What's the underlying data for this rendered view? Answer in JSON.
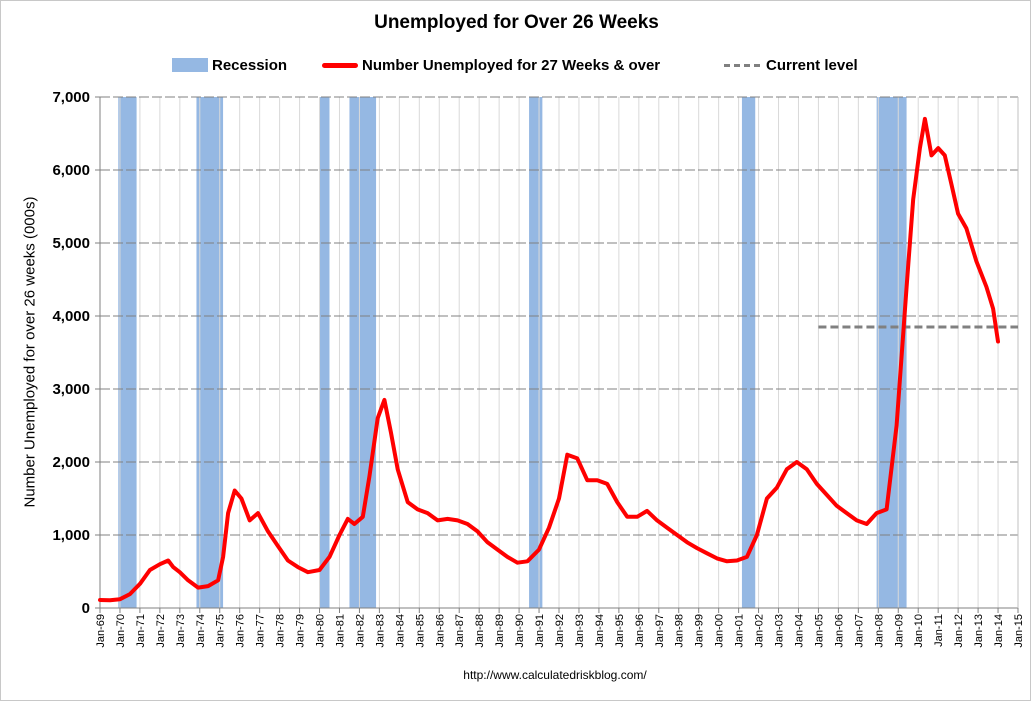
{
  "chart_data": {
    "type": "line",
    "title": "Unemployed for Over 26 Weeks",
    "ylabel": "Number Unemployed for over 26 weeks (000s)",
    "xlabel": "",
    "ylim": [
      0,
      7000
    ],
    "yticks": [
      "0",
      "1,000",
      "2,000",
      "3,000",
      "4,000",
      "5,000",
      "6,000",
      "7,000"
    ],
    "xlim": [
      "1969-01",
      "2015-01"
    ],
    "xticks": [
      "Jan-69",
      "Jan-70",
      "Jan-71",
      "Jan-72",
      "Jan-73",
      "Jan-74",
      "Jan-75",
      "Jan-76",
      "Jan-77",
      "Jan-78",
      "Jan-79",
      "Jan-80",
      "Jan-81",
      "Jan-82",
      "Jan-83",
      "Jan-84",
      "Jan-85",
      "Jan-86",
      "Jan-87",
      "Jan-88",
      "Jan-89",
      "Jan-90",
      "Jan-91",
      "Jan-92",
      "Jan-93",
      "Jan-94",
      "Jan-95",
      "Jan-96",
      "Jan-97",
      "Jan-98",
      "Jan-99",
      "Jan-00",
      "Jan-01",
      "Jan-02",
      "Jan-03",
      "Jan-04",
      "Jan-05",
      "Jan-06",
      "Jan-07",
      "Jan-08",
      "Jan-09",
      "Jan-10",
      "Jan-11",
      "Jan-12",
      "Jan-13",
      "Jan-14",
      "Jan-15"
    ],
    "legend_position": "top",
    "grid": true,
    "colors": {
      "recession": "#95b8e3",
      "series": "#ff0000",
      "current": "#808080",
      "grid": "#c0c0c0"
    },
    "legend": {
      "recession": "Recession",
      "series": "Number Unemployed for 27 Weeks & over",
      "current": "Current level"
    },
    "recessions": [
      [
        "1969-12",
        "1970-11"
      ],
      [
        "1973-11",
        "1975-03"
      ],
      [
        "1980-01",
        "1980-07"
      ],
      [
        "1981-07",
        "1982-11"
      ],
      [
        "1990-07",
        "1991-03"
      ],
      [
        "2001-03",
        "2001-11"
      ],
      [
        "2007-12",
        "2009-06"
      ]
    ],
    "current_level": {
      "value": 3850,
      "from": "2005-01",
      "to": "2015-01"
    },
    "series": [
      {
        "name": "Number Unemployed for 27 Weeks & over",
        "points": [
          [
            "1969-01",
            110
          ],
          [
            "1969-07",
            105
          ],
          [
            "1970-01",
            120
          ],
          [
            "1970-07",
            190
          ],
          [
            "1971-01",
            330
          ],
          [
            "1971-07",
            520
          ],
          [
            "1972-01",
            600
          ],
          [
            "1972-06",
            650
          ],
          [
            "1972-09",
            560
          ],
          [
            "1973-01",
            490
          ],
          [
            "1973-06",
            380
          ],
          [
            "1973-12",
            280
          ],
          [
            "1974-06",
            300
          ],
          [
            "1974-12",
            380
          ],
          [
            "1975-03",
            700
          ],
          [
            "1975-06",
            1300
          ],
          [
            "1975-10",
            1610
          ],
          [
            "1976-02",
            1500
          ],
          [
            "1976-07",
            1200
          ],
          [
            "1976-12",
            1300
          ],
          [
            "1977-06",
            1050
          ],
          [
            "1977-12",
            850
          ],
          [
            "1978-06",
            650
          ],
          [
            "1978-12",
            560
          ],
          [
            "1979-06",
            490
          ],
          [
            "1980-01",
            520
          ],
          [
            "1980-07",
            700
          ],
          [
            "1981-01",
            1000
          ],
          [
            "1981-06",
            1220
          ],
          [
            "1981-10",
            1150
          ],
          [
            "1982-03",
            1250
          ],
          [
            "1982-07",
            1800
          ],
          [
            "1982-12",
            2600
          ],
          [
            "1983-04",
            2850
          ],
          [
            "1983-08",
            2400
          ],
          [
            "1983-12",
            1900
          ],
          [
            "1984-06",
            1450
          ],
          [
            "1984-12",
            1350
          ],
          [
            "1985-06",
            1300
          ],
          [
            "1985-12",
            1200
          ],
          [
            "1986-06",
            1220
          ],
          [
            "1986-12",
            1200
          ],
          [
            "1987-06",
            1150
          ],
          [
            "1987-12",
            1050
          ],
          [
            "1988-06",
            900
          ],
          [
            "1988-12",
            800
          ],
          [
            "1989-06",
            700
          ],
          [
            "1989-12",
            620
          ],
          [
            "1990-06",
            640
          ],
          [
            "1991-01",
            800
          ],
          [
            "1991-07",
            1100
          ],
          [
            "1992-01",
            1500
          ],
          [
            "1992-06",
            2100
          ],
          [
            "1992-12",
            2050
          ],
          [
            "1993-06",
            1750
          ],
          [
            "1993-12",
            1750
          ],
          [
            "1994-06",
            1700
          ],
          [
            "1994-12",
            1450
          ],
          [
            "1995-06",
            1250
          ],
          [
            "1995-12",
            1250
          ],
          [
            "1996-06",
            1330
          ],
          [
            "1996-12",
            1200
          ],
          [
            "1997-06",
            1100
          ],
          [
            "1997-12",
            1000
          ],
          [
            "1998-06",
            900
          ],
          [
            "1998-12",
            820
          ],
          [
            "1999-06",
            750
          ],
          [
            "1999-12",
            680
          ],
          [
            "2000-06",
            640
          ],
          [
            "2000-12",
            650
          ],
          [
            "2001-06",
            700
          ],
          [
            "2001-12",
            1000
          ],
          [
            "2002-06",
            1500
          ],
          [
            "2002-12",
            1650
          ],
          [
            "2003-06",
            1900
          ],
          [
            "2003-12",
            2000
          ],
          [
            "2004-06",
            1900
          ],
          [
            "2004-12",
            1700
          ],
          [
            "2005-06",
            1550
          ],
          [
            "2005-12",
            1400
          ],
          [
            "2006-06",
            1300
          ],
          [
            "2006-12",
            1200
          ],
          [
            "2007-06",
            1150
          ],
          [
            "2007-12",
            1300
          ],
          [
            "2008-06",
            1350
          ],
          [
            "2008-12",
            2500
          ],
          [
            "2009-06",
            4400
          ],
          [
            "2009-10",
            5600
          ],
          [
            "2010-02",
            6300
          ],
          [
            "2010-05",
            6700
          ],
          [
            "2010-09",
            6200
          ],
          [
            "2011-01",
            6300
          ],
          [
            "2011-05",
            6200
          ],
          [
            "2011-09",
            5800
          ],
          [
            "2012-01",
            5400
          ],
          [
            "2012-06",
            5200
          ],
          [
            "2012-12",
            4750
          ],
          [
            "2013-06",
            4400
          ],
          [
            "2013-10",
            4100
          ],
          [
            "2014-01",
            3650
          ]
        ]
      }
    ]
  },
  "source_url": "http://www.calculatedriskblog.com/"
}
